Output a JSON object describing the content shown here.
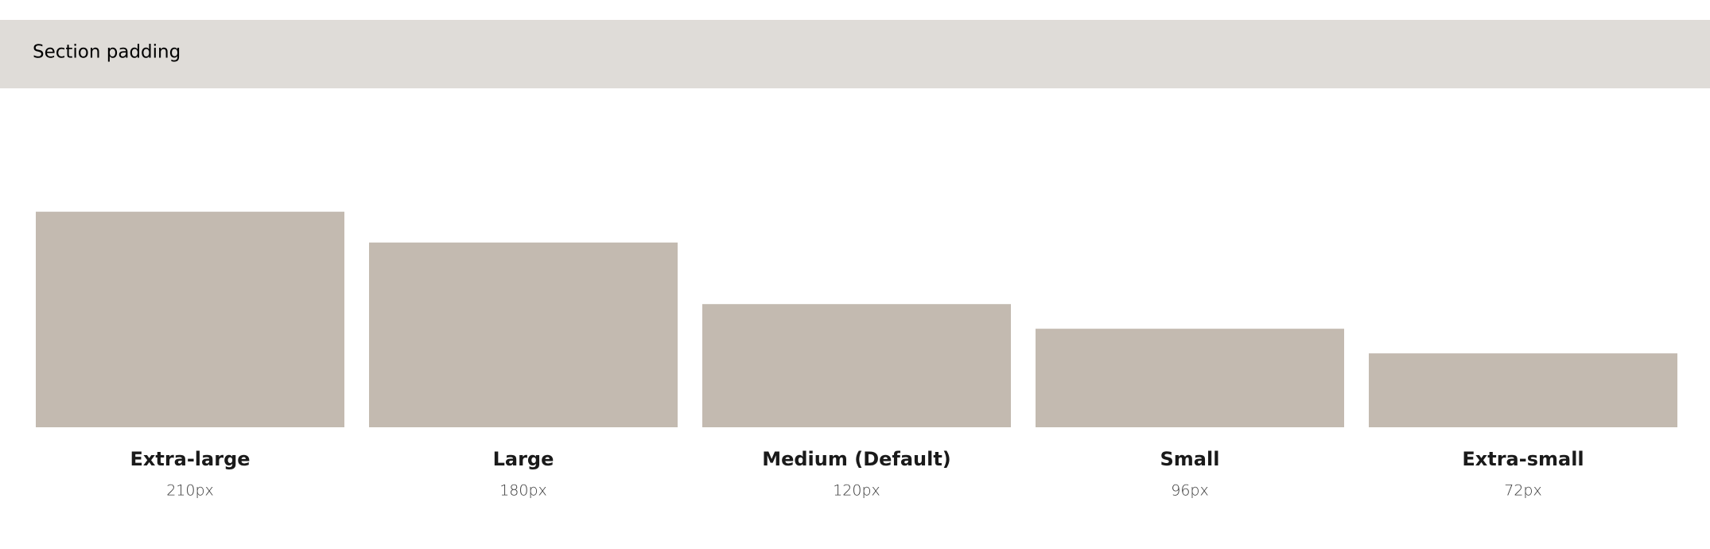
{
  "header": {
    "title": "Section padding"
  },
  "items": [
    {
      "name": "Extra-large",
      "size": {
        "value": 210,
        "label": "210px"
      }
    },
    {
      "name": "Large",
      "size": {
        "value": 180,
        "label": "180px"
      }
    },
    {
      "name": "Medium (Default)",
      "size": {
        "value": 120,
        "label": "120px"
      }
    },
    {
      "name": "Small",
      "size": {
        "value": 96,
        "label": "96px"
      }
    },
    {
      "name": "Extra-small",
      "size": {
        "value": 72,
        "label": "72px"
      }
    }
  ]
}
